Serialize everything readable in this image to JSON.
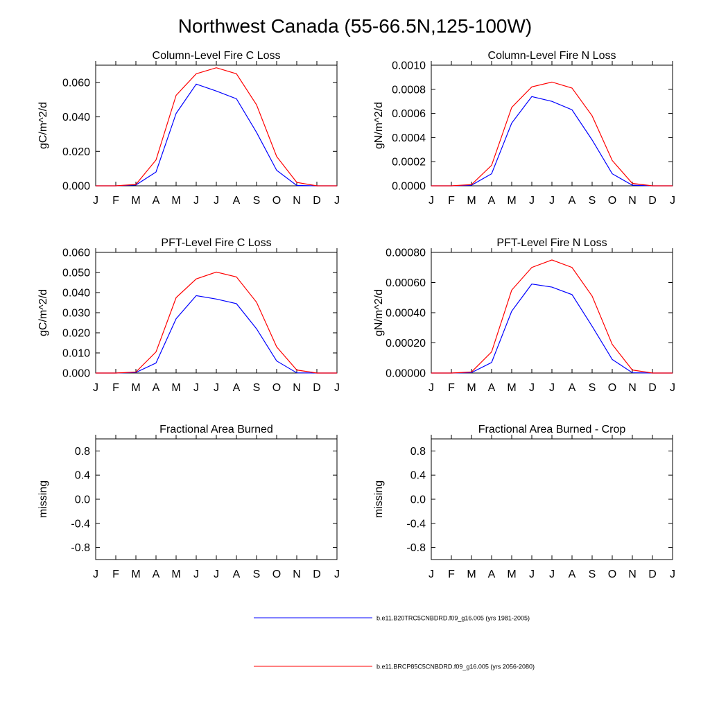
{
  "page": {
    "title": "Northwest Canada (55-66.5N,125-100W)"
  },
  "colors": {
    "series1": "#0000ff",
    "series2": "#ff0000",
    "axis": "#000000"
  },
  "chart_data": [
    {
      "type": "line",
      "title": "Column-Level Fire C Loss",
      "ylabel": "gC/m^2/d",
      "xlabel": "",
      "categories": [
        "J",
        "F",
        "M",
        "A",
        "M",
        "J",
        "J",
        "A",
        "S",
        "O",
        "N",
        "D",
        "J"
      ],
      "ylim": [
        0,
        0.07
      ],
      "yticks": [
        0,
        0.02,
        0.04,
        0.06
      ],
      "ytick_labels": [
        "0.000",
        "0.020",
        "0.040",
        "0.060"
      ],
      "series": [
        {
          "name": "b.e11.B20TRC5CNBDRD.f09_g16.005 (yrs 1981-2005)",
          "values": [
            0,
            0,
            0.0005,
            0.008,
            0.042,
            0.059,
            0.055,
            0.0505,
            0.031,
            0.009,
            0.0002,
            0,
            0
          ]
        },
        {
          "name": "b.e11.BRCP85C5CNBDRD.f09_g16.005 (yrs 2056-2080)",
          "values": [
            0,
            0,
            0.0008,
            0.015,
            0.0525,
            0.065,
            0.0685,
            0.065,
            0.047,
            0.017,
            0.002,
            0,
            0
          ]
        }
      ]
    },
    {
      "type": "line",
      "title": "Column-Level Fire N Loss",
      "ylabel": "gN/m^2/d",
      "xlabel": "",
      "categories": [
        "J",
        "F",
        "M",
        "A",
        "M",
        "J",
        "J",
        "A",
        "S",
        "O",
        "N",
        "D",
        "J"
      ],
      "ylim": [
        0,
        0.001
      ],
      "yticks": [
        0,
        0.0002,
        0.0004,
        0.0006,
        0.0008,
        0.001
      ],
      "ytick_labels": [
        "0.0000",
        "0.0002",
        "0.0004",
        "0.0006",
        "0.0008",
        "0.0010"
      ],
      "series": [
        {
          "name": "b.e11.B20TRC5CNBDRD.f09_g16.005 (yrs 1981-2005)",
          "values": [
            0,
            0,
            5e-06,
            0.0001,
            0.00052,
            0.00074,
            0.0007,
            0.00063,
            0.00038,
            0.0001,
            5e-06,
            0,
            0
          ]
        },
        {
          "name": "b.e11.BRCP85C5CNBDRD.f09_g16.005 (yrs 2056-2080)",
          "values": [
            0,
            0,
            1e-05,
            0.00017,
            0.00065,
            0.00082,
            0.00086,
            0.00081,
            0.00058,
            0.00021,
            2e-05,
            0,
            0
          ]
        }
      ]
    },
    {
      "type": "line",
      "title": "PFT-Level Fire C Loss",
      "ylabel": "gC/m^2/d",
      "xlabel": "",
      "categories": [
        "J",
        "F",
        "M",
        "A",
        "M",
        "J",
        "J",
        "A",
        "S",
        "O",
        "N",
        "D",
        "J"
      ],
      "ylim": [
        0,
        0.06
      ],
      "yticks": [
        0,
        0.01,
        0.02,
        0.03,
        0.04,
        0.05,
        0.06
      ],
      "ytick_labels": [
        "0.000",
        "0.010",
        "0.020",
        "0.030",
        "0.040",
        "0.050",
        "0.060"
      ],
      "series": [
        {
          "name": "b.e11.B20TRC5CNBDRD.f09_g16.005 (yrs 1981-2005)",
          "values": [
            0,
            0,
            0.0003,
            0.005,
            0.027,
            0.0385,
            0.0368,
            0.0345,
            0.022,
            0.006,
            0.0001,
            0,
            0
          ]
        },
        {
          "name": "b.e11.BRCP85C5CNBDRD.f09_g16.005 (yrs 2056-2080)",
          "values": [
            0,
            0,
            0.0005,
            0.0105,
            0.0375,
            0.0468,
            0.0502,
            0.0478,
            0.0352,
            0.013,
            0.0015,
            0,
            0
          ]
        }
      ]
    },
    {
      "type": "line",
      "title": "PFT-Level Fire N Loss",
      "ylabel": "gN/m^2/d",
      "xlabel": "",
      "categories": [
        "J",
        "F",
        "M",
        "A",
        "M",
        "J",
        "J",
        "A",
        "S",
        "O",
        "N",
        "D",
        "J"
      ],
      "ylim": [
        0,
        0.0008
      ],
      "yticks": [
        0,
        0.0002,
        0.0004,
        0.0006,
        0.0008
      ],
      "ytick_labels": [
        "0.00000",
        "0.00020",
        "0.00040",
        "0.00060",
        "0.00080"
      ],
      "series": [
        {
          "name": "b.e11.B20TRC5CNBDRD.f09_g16.005 (yrs 1981-2005)",
          "values": [
            0,
            0,
            3e-06,
            7e-05,
            0.00041,
            0.00059,
            0.00057,
            0.00052,
            0.00031,
            9e-05,
            2e-06,
            0,
            0
          ]
        },
        {
          "name": "b.e11.BRCP85C5CNBDRD.f09_g16.005 (yrs 2056-2080)",
          "values": [
            0,
            0,
            7e-06,
            0.00014,
            0.00055,
            0.0007,
            0.00075,
            0.0007,
            0.00051,
            0.00019,
            2e-05,
            0,
            0
          ]
        }
      ]
    },
    {
      "type": "line",
      "title": "Fractional Area Burned",
      "ylabel": "missing",
      "xlabel": "",
      "categories": [
        "J",
        "F",
        "M",
        "A",
        "M",
        "J",
        "J",
        "A",
        "S",
        "O",
        "N",
        "D",
        "J"
      ],
      "ylim": [
        -1,
        1
      ],
      "yticks": [
        -0.8,
        -0.4,
        0,
        0.4,
        0.8
      ],
      "ytick_labels": [
        "-0.8",
        "-0.4",
        "0.0",
        "0.4",
        "0.8"
      ],
      "series": []
    },
    {
      "type": "line",
      "title": "Fractional Area Burned - Crop",
      "ylabel": "missing",
      "xlabel": "",
      "categories": [
        "J",
        "F",
        "M",
        "A",
        "M",
        "J",
        "J",
        "A",
        "S",
        "O",
        "N",
        "D",
        "J"
      ],
      "ylim": [
        -1,
        1
      ],
      "yticks": [
        -0.8,
        -0.4,
        0,
        0.4,
        0.8
      ],
      "ytick_labels": [
        "-0.8",
        "-0.4",
        "0.0",
        "0.4",
        "0.8"
      ],
      "series": []
    }
  ],
  "legend": [
    {
      "label": "b.e11.B20TRC5CNBDRD.f09_g16.005 (yrs 1981-2005)",
      "color": "#0000ff"
    },
    {
      "label": "b.e11.BRCP85C5CNBDRD.f09_g16.005 (yrs 2056-2080)",
      "color": "#ff0000"
    }
  ]
}
